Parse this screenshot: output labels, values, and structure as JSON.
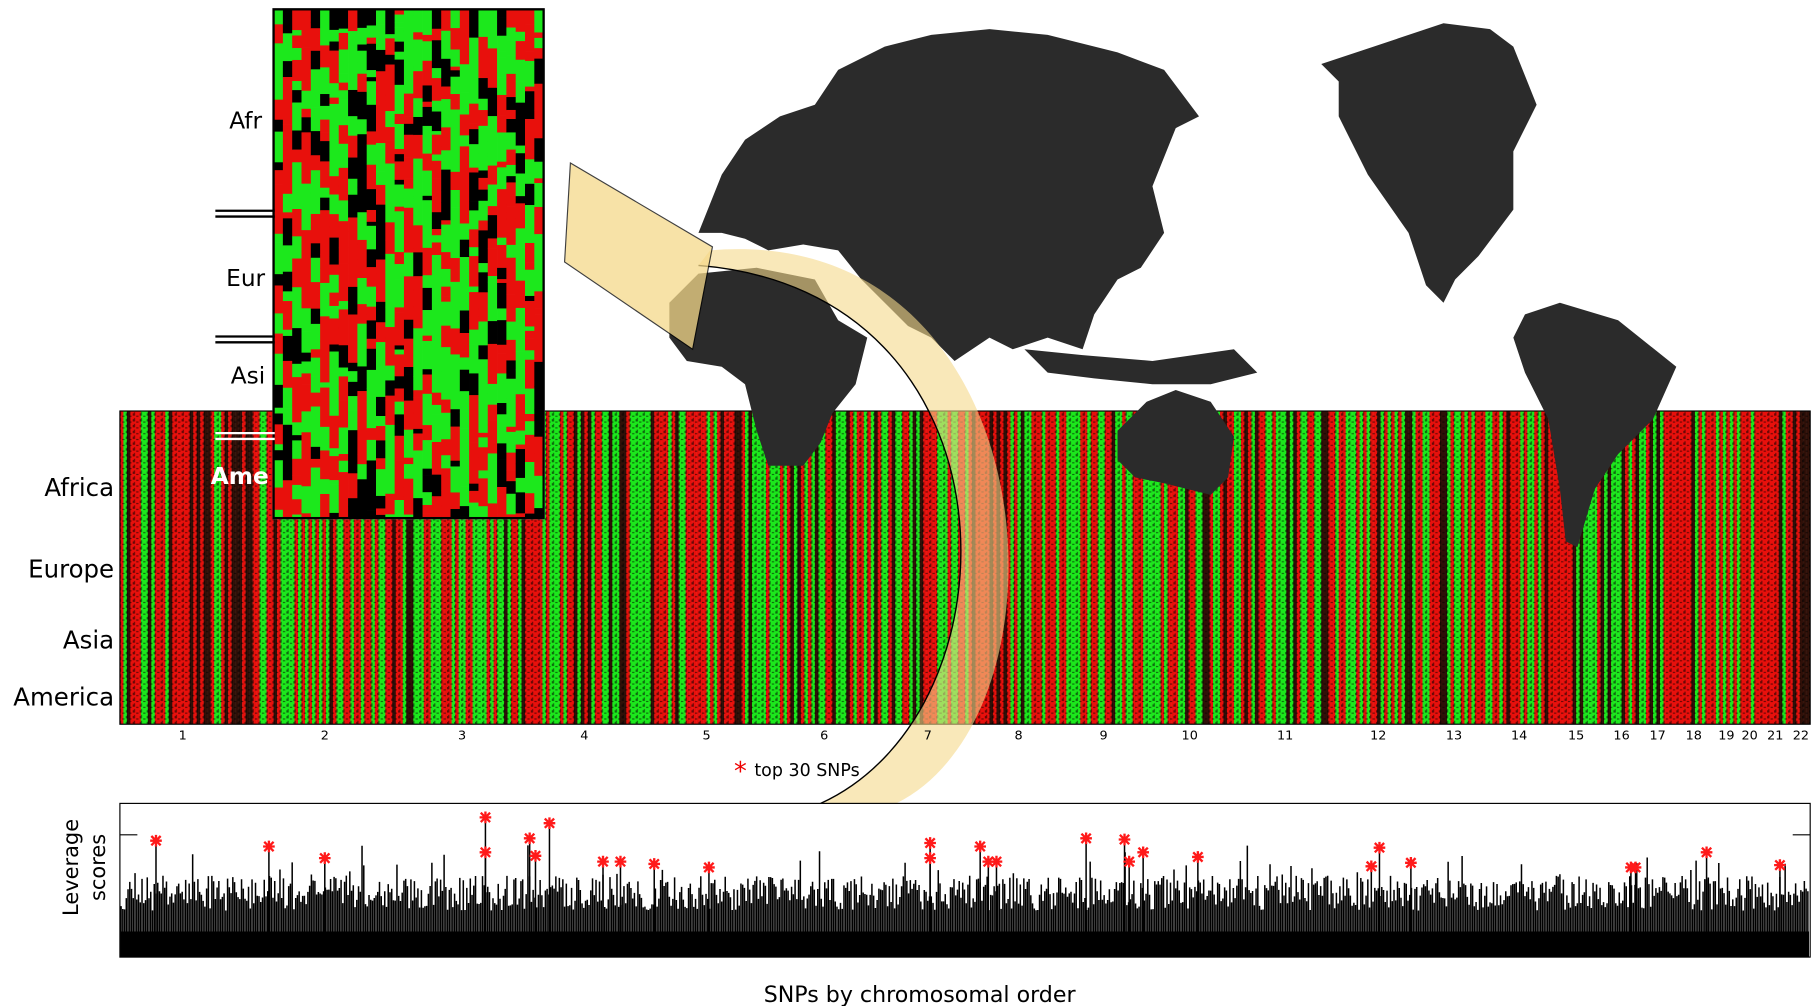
{
  "inset": {
    "labels": [
      "Afr",
      "Eur",
      "Asi",
      "Ame"
    ]
  },
  "heatmap": {
    "row_labels": [
      "Africa",
      "Europe",
      "Asia",
      "America"
    ],
    "chromosome_labels": [
      "1",
      "2",
      "3",
      "4",
      "5",
      "6",
      "7",
      "8",
      "9",
      "10",
      "11",
      "12",
      "13",
      "14",
      "15",
      "16",
      "17",
      "18",
      "19",
      "20",
      "21",
      "22"
    ]
  },
  "legend": {
    "label": "top 30 SNPs"
  },
  "leverage_plot": {
    "y_label_lines": [
      "Leverage",
      "scores"
    ],
    "x_label": "SNPs by chromosomal order"
  }
}
